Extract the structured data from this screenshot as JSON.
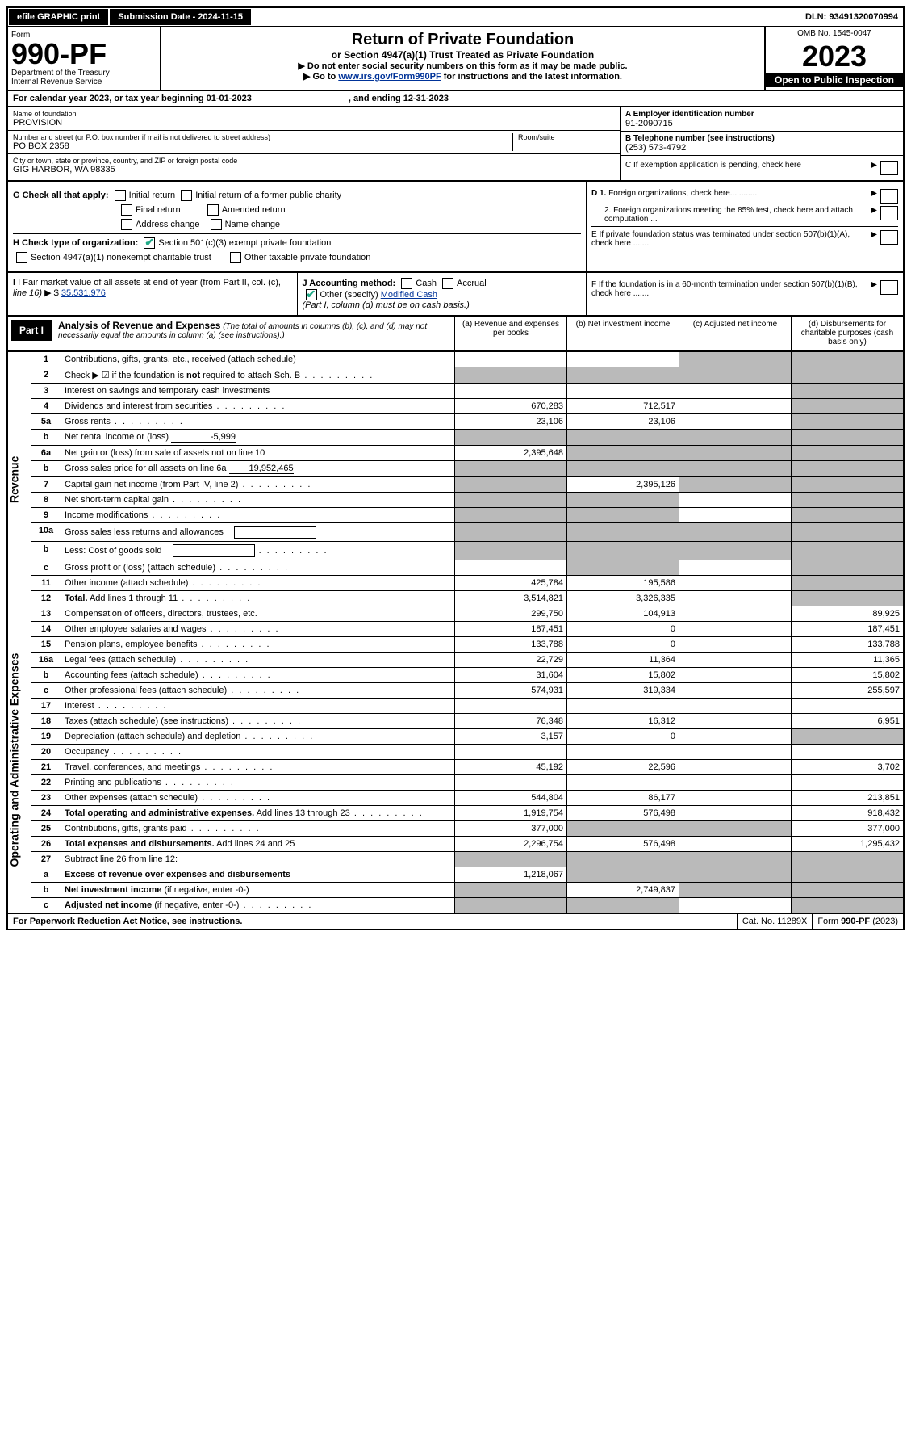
{
  "topbar": {
    "efile": "efile GRAPHIC print",
    "submission": "Submission Date - 2024-11-15",
    "dln": "DLN: 93491320070994"
  },
  "header": {
    "form_label": "Form",
    "form_number": "990-PF",
    "dept": "Department of the Treasury",
    "irs": "Internal Revenue Service",
    "title": "Return of Private Foundation",
    "subtitle": "or Section 4947(a)(1) Trust Treated as Private Foundation",
    "note1": "▶ Do not enter social security numbers on this form as it may be made public.",
    "note2_pre": "▶ Go to ",
    "note2_link": "www.irs.gov/Form990PF",
    "note2_post": " for instructions and the latest information.",
    "omb": "OMB No. 1545-0047",
    "year": "2023",
    "open": "Open to Public Inspection"
  },
  "calyear": {
    "pre": "For calendar year 2023, or tax year beginning 01-01-2023",
    "mid": ", and ending 12-31-2023"
  },
  "entity": {
    "name_label": "Name of foundation",
    "name": "PROVISION",
    "addr_label": "Number and street (or P.O. box number if mail is not delivered to street address)",
    "addr": "PO BOX 2358",
    "room_label": "Room/suite",
    "city_label": "City or town, state or province, country, and ZIP or foreign postal code",
    "city": "GIG HARBOR, WA  98335",
    "ein_label": "A Employer identification number",
    "ein": "91-2090715",
    "tel_label": "B Telephone number (see instructions)",
    "tel": "(253) 573-4792",
    "c_label": "C If exemption application is pending, check here"
  },
  "checks": {
    "g_label": "G Check all that apply:",
    "g_initial": "Initial return",
    "g_initial_former": "Initial return of a former public charity",
    "g_final": "Final return",
    "g_amended": "Amended return",
    "g_addr": "Address change",
    "g_name": "Name change",
    "h_label": "H Check type of organization:",
    "h_501c3": "Section 501(c)(3) exempt private foundation",
    "h_4947": "Section 4947(a)(1) nonexempt charitable trust",
    "h_other": "Other taxable private foundation",
    "d1": "D 1. Foreign organizations, check here............",
    "d2": "2. Foreign organizations meeting the 85% test, check here and attach computation ...",
    "e": "E  If private foundation status was terminated under section 507(b)(1)(A), check here .......",
    "i_label": "I Fair market value of all assets at end of year (from Part II, col. (c),",
    "i_line": "line 16)",
    "i_val": "35,531,976",
    "j_label": "J Accounting method:",
    "j_cash": "Cash",
    "j_accrual": "Accrual",
    "j_other": "Other (specify)",
    "j_other_val": "Modified Cash",
    "j_note": "(Part I, column (d) must be on cash basis.)",
    "f": "F  If the foundation is in a 60-month termination under section 507(b)(1)(B), check here ......."
  },
  "part1": {
    "label": "Part I",
    "title": "Analysis of Revenue and Expenses",
    "note": "(The total of amounts in columns (b), (c), and (d) may not necessarily equal the amounts in column (a) (see instructions).)",
    "col_a": "(a)   Revenue and expenses per books",
    "col_b": "(b)   Net investment income",
    "col_c": "(c)   Adjusted net income",
    "col_d": "(d)   Disbursements for charitable purposes (cash basis only)"
  },
  "sections": {
    "revenue": "Revenue",
    "expenses": "Operating and Administrative Expenses"
  },
  "rows": [
    {
      "n": "1",
      "d": "Contributions, gifts, grants, etc., received (attach schedule)",
      "a": "",
      "b": "",
      "c_grey": true,
      "d_grey": true
    },
    {
      "n": "2",
      "d": "Check ▶ ☑ if the foundation is <b>not</b> required to attach Sch. B",
      "dots": true,
      "a_grey": true,
      "b_grey": true,
      "c_grey": true,
      "d_grey": true
    },
    {
      "n": "3",
      "d": "Interest on savings and temporary cash investments",
      "a": "",
      "b": "",
      "c": "",
      "d_grey": true
    },
    {
      "n": "4",
      "d": "Dividends and interest from securities",
      "dots": true,
      "a": "670,283",
      "b": "712,517",
      "c": "",
      "d_grey": true
    },
    {
      "n": "5a",
      "d": "Gross rents",
      "dots": true,
      "a": "23,106",
      "b": "23,106",
      "c": "",
      "d_grey": true
    },
    {
      "n": "b",
      "d": "Net rental income or (loss)",
      "inline": "-5,999",
      "a_grey": true,
      "b_grey": true,
      "c_grey": true,
      "d_grey": true
    },
    {
      "n": "6a",
      "d": "Net gain or (loss) from sale of assets not on line 10",
      "a": "2,395,648",
      "b_grey": true,
      "c_grey": true,
      "d_grey": true
    },
    {
      "n": "b",
      "d": "Gross sales price for all assets on line 6a",
      "inline": "19,952,465",
      "a_grey": true,
      "b_grey": true,
      "c_grey": true,
      "d_grey": true
    },
    {
      "n": "7",
      "d": "Capital gain net income (from Part IV, line 2)",
      "dots": true,
      "a_grey": true,
      "b": "2,395,126",
      "c_grey": true,
      "d_grey": true
    },
    {
      "n": "8",
      "d": "Net short-term capital gain",
      "dots": true,
      "a_grey": true,
      "b_grey": true,
      "c": "",
      "d_grey": true
    },
    {
      "n": "9",
      "d": "Income modifications",
      "dots": true,
      "a_grey": true,
      "b_grey": true,
      "c": "",
      "d_grey": true
    },
    {
      "n": "10a",
      "d": "Gross sales less returns and allowances",
      "box": true,
      "a_grey": true,
      "b_grey": true,
      "c_grey": true,
      "d_grey": true
    },
    {
      "n": "b",
      "d": "Less: Cost of goods sold",
      "dots": true,
      "box": true,
      "a_grey": true,
      "b_grey": true,
      "c_grey": true,
      "d_grey": true
    },
    {
      "n": "c",
      "d": "Gross profit or (loss) (attach schedule)",
      "dots": true,
      "a": "",
      "b_grey": true,
      "c": "",
      "d_grey": true
    },
    {
      "n": "11",
      "d": "Other income (attach schedule)",
      "dots": true,
      "a": "425,784",
      "b": "195,586",
      "c": "",
      "d_grey": true
    },
    {
      "n": "12",
      "d": "<b>Total.</b> Add lines 1 through 11",
      "dots": true,
      "bold": true,
      "a": "3,514,821",
      "b": "3,326,335",
      "c": "",
      "d_grey": true
    }
  ],
  "exp_rows": [
    {
      "n": "13",
      "d": "Compensation of officers, directors, trustees, etc.",
      "a": "299,750",
      "b": "104,913",
      "c": "",
      "dd": "89,925"
    },
    {
      "n": "14",
      "d": "Other employee salaries and wages",
      "dots": true,
      "a": "187,451",
      "b": "0",
      "c": "",
      "dd": "187,451"
    },
    {
      "n": "15",
      "d": "Pension plans, employee benefits",
      "dots": true,
      "a": "133,788",
      "b": "0",
      "c": "",
      "dd": "133,788"
    },
    {
      "n": "16a",
      "d": "Legal fees (attach schedule)",
      "dots": true,
      "a": "22,729",
      "b": "11,364",
      "c": "",
      "dd": "11,365"
    },
    {
      "n": "b",
      "d": "Accounting fees (attach schedule)",
      "dots": true,
      "a": "31,604",
      "b": "15,802",
      "c": "",
      "dd": "15,802"
    },
    {
      "n": "c",
      "d": "Other professional fees (attach schedule)",
      "dots": true,
      "a": "574,931",
      "b": "319,334",
      "c": "",
      "dd": "255,597"
    },
    {
      "n": "17",
      "d": "Interest",
      "dots": true,
      "a": "",
      "b": "",
      "c": "",
      "dd": ""
    },
    {
      "n": "18",
      "d": "Taxes (attach schedule) (see instructions)",
      "dots": true,
      "a": "76,348",
      "b": "16,312",
      "c": "",
      "dd": "6,951"
    },
    {
      "n": "19",
      "d": "Depreciation (attach schedule) and depletion",
      "dots": true,
      "a": "3,157",
      "b": "0",
      "c": "",
      "d_grey": true
    },
    {
      "n": "20",
      "d": "Occupancy",
      "dots": true,
      "a": "",
      "b": "",
      "c": "",
      "dd": ""
    },
    {
      "n": "21",
      "d": "Travel, conferences, and meetings",
      "dots": true,
      "a": "45,192",
      "b": "22,596",
      "c": "",
      "dd": "3,702"
    },
    {
      "n": "22",
      "d": "Printing and publications",
      "dots": true,
      "a": "",
      "b": "",
      "c": "",
      "dd": ""
    },
    {
      "n": "23",
      "d": "Other expenses (attach schedule)",
      "dots": true,
      "a": "544,804",
      "b": "86,177",
      "c": "",
      "dd": "213,851"
    },
    {
      "n": "24",
      "d": "<b>Total operating and administrative expenses.</b> Add lines 13 through 23",
      "dots": true,
      "a": "1,919,754",
      "b": "576,498",
      "c": "",
      "dd": "918,432"
    },
    {
      "n": "25",
      "d": "Contributions, gifts, grants paid",
      "dots": true,
      "a": "377,000",
      "b_grey": true,
      "c_grey": true,
      "dd": "377,000"
    },
    {
      "n": "26",
      "d": "<b>Total expenses and disbursements.</b> Add lines 24 and 25",
      "a": "2,296,754",
      "b": "576,498",
      "c": "",
      "dd": "1,295,432"
    },
    {
      "n": "27",
      "d": "Subtract line 26 from line 12:",
      "a_grey": true,
      "b_grey": true,
      "c_grey": true,
      "d_grey": true
    },
    {
      "n": "a",
      "d": "<b>Excess of revenue over expenses and disbursements</b>",
      "a": "1,218,067",
      "b_grey": true,
      "c_grey": true,
      "d_grey": true
    },
    {
      "n": "b",
      "d": "<b>Net investment income</b> (if negative, enter -0-)",
      "a_grey": true,
      "b": "2,749,837",
      "c_grey": true,
      "d_grey": true
    },
    {
      "n": "c",
      "d": "<b>Adjusted net income</b> (if negative, enter -0-)",
      "dots": true,
      "a_grey": true,
      "b_grey": true,
      "c": "",
      "d_grey": true
    }
  ],
  "footer": {
    "left": "For Paperwork Reduction Act Notice, see instructions.",
    "mid": "Cat. No. 11289X",
    "right": "Form 990-PF (2023)"
  }
}
